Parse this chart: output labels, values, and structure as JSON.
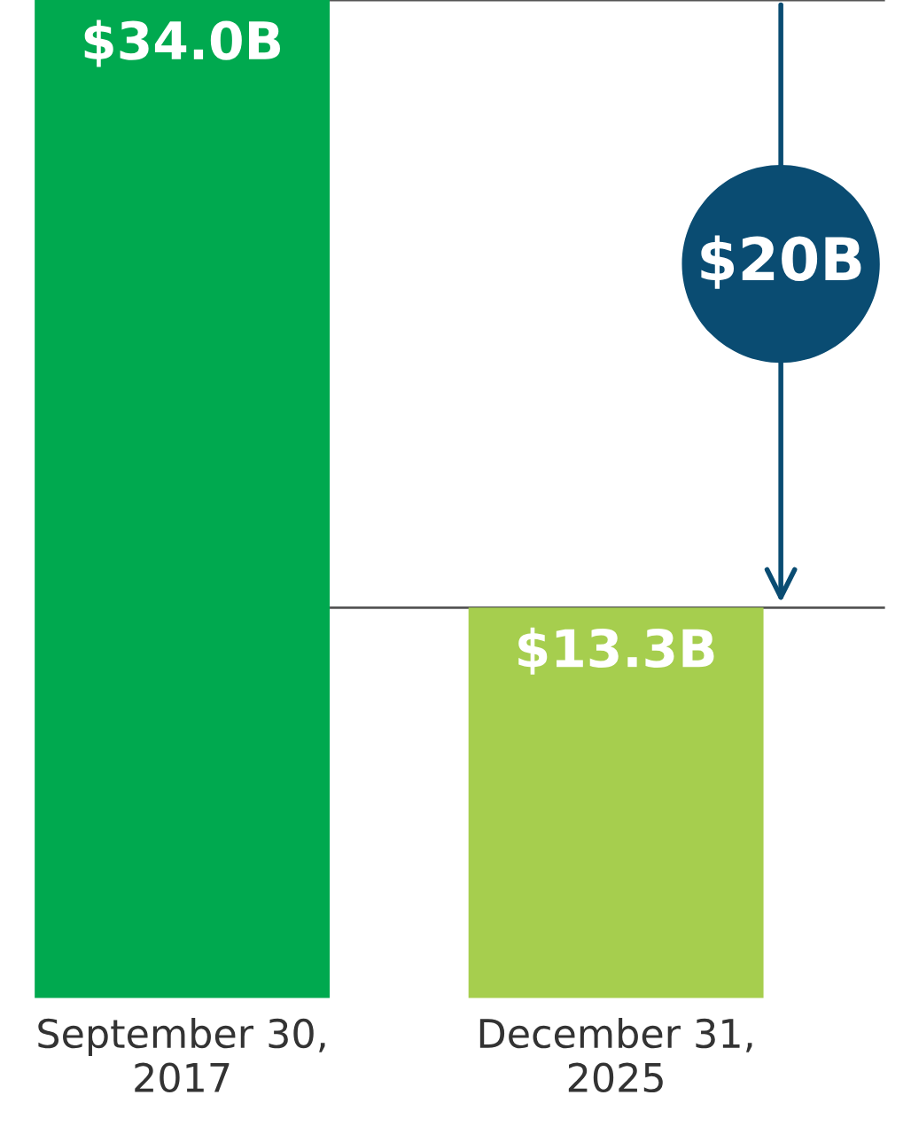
{
  "chart_data": {
    "type": "bar",
    "categories": [
      "September 30,\n2017",
      "December 31,\n2025"
    ],
    "values": [
      34.0,
      13.3
    ],
    "colors": [
      "#00a94f",
      "#a6ce4e"
    ],
    "value_labels": [
      "$34.0B",
      "$13.3B"
    ],
    "ref_lines": [
      {
        "axis": "y",
        "value": 34.0,
        "color": "#555555"
      },
      {
        "axis": "y",
        "value": 13.3,
        "color": "#555555"
      }
    ],
    "annotations": [
      "$20B"
    ],
    "grid": false,
    "legend": false
  }
}
